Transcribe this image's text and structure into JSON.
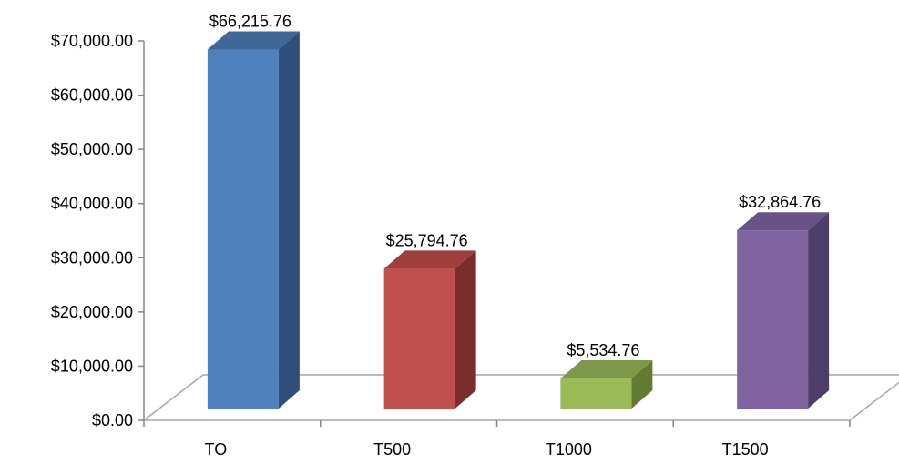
{
  "chart_data": {
    "type": "bar",
    "style": "3d-column",
    "categories": [
      "TO",
      "T500",
      "T1000",
      "T1500"
    ],
    "values": [
      66215.76,
      25794.76,
      5534.76,
      32864.76
    ],
    "data_labels": [
      "$66,215.76",
      "$25,794.76",
      "$5,534.76",
      "$32,864.76"
    ],
    "yticks": [
      0,
      10000,
      20000,
      30000,
      40000,
      50000,
      60000,
      70000
    ],
    "ytick_labels": [
      "$0.00",
      "$10,000.00",
      "$20,000.00",
      "$30,000.00",
      "$40,000.00",
      "$50,000.00",
      "$60,000.00",
      "$70,000.00"
    ],
    "ylim": [
      0,
      70000
    ],
    "grid": false,
    "legend": "none",
    "colors": [
      "#4F81BD",
      "#C0504D",
      "#9BBB59",
      "#8064A2"
    ],
    "side_colors": [
      "#2F4F7A",
      "#7A2E2C",
      "#637A33",
      "#4F3D69"
    ],
    "top_colors": [
      "#3F6798",
      "#9E3F3C",
      "#7D9848",
      "#685287"
    ]
  }
}
